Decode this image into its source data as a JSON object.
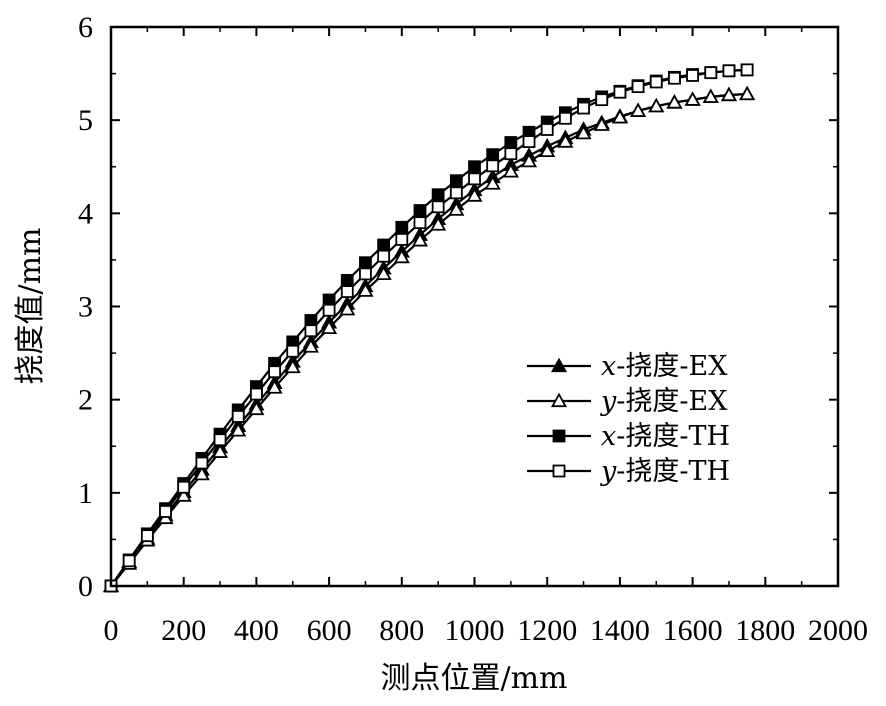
{
  "chart_data": {
    "type": "line",
    "xlabel": "测点位置/mm",
    "ylabel": "挠度值/mm",
    "xlim": [
      0,
      2000
    ],
    "ylim": [
      0,
      6
    ],
    "xticks": [
      "0",
      "200",
      "400",
      "600",
      "800",
      "1000",
      "1200",
      "1400",
      "1600",
      "1800",
      "2000"
    ],
    "yticks": [
      "0",
      "1",
      "2",
      "3",
      "4",
      "5",
      "6"
    ],
    "grid": false,
    "legend_position": "right-middle",
    "x": [
      0,
      50,
      100,
      150,
      200,
      250,
      300,
      350,
      400,
      450,
      500,
      550,
      600,
      650,
      700,
      750,
      800,
      850,
      900,
      950,
      1000,
      1050,
      1100,
      1150,
      1200,
      1250,
      1300,
      1350,
      1400,
      1450,
      1500,
      1550,
      1600,
      1650,
      1700,
      1750
    ],
    "series": [
      {
        "name": "x-挠度-EX",
        "var": "x",
        "suffix": "-挠度-EX",
        "marker": "triangle-filled",
        "values": [
          0,
          0.26,
          0.51,
          0.76,
          1.01,
          1.25,
          1.49,
          1.72,
          1.95,
          2.18,
          2.41,
          2.62,
          2.83,
          3.03,
          3.22,
          3.41,
          3.59,
          3.77,
          3.94,
          4.1,
          4.25,
          4.39,
          4.52,
          4.62,
          4.72,
          4.81,
          4.9,
          4.97,
          5.04,
          5.1,
          5.15,
          5.19,
          5.22,
          5.25,
          5.27,
          5.28
        ]
      },
      {
        "name": "y-挠度-EX",
        "var": "y",
        "suffix": "-挠度-EX",
        "marker": "triangle-open",
        "values": [
          0,
          0.24,
          0.49,
          0.73,
          0.97,
          1.2,
          1.44,
          1.67,
          1.9,
          2.13,
          2.35,
          2.57,
          2.77,
          2.97,
          3.17,
          3.35,
          3.53,
          3.71,
          3.88,
          4.04,
          4.19,
          4.32,
          4.45,
          4.56,
          4.67,
          4.77,
          4.86,
          4.95,
          5.03,
          5.1,
          5.15,
          5.19,
          5.22,
          5.25,
          5.27,
          5.28
        ]
      },
      {
        "name": "x-挠度-TH",
        "var": "x",
        "suffix": "-挠度-TH",
        "marker": "square-filled",
        "values": [
          0,
          0.28,
          0.56,
          0.83,
          1.1,
          1.37,
          1.63,
          1.89,
          2.14,
          2.39,
          2.62,
          2.85,
          3.07,
          3.28,
          3.47,
          3.66,
          3.85,
          4.03,
          4.2,
          4.35,
          4.5,
          4.63,
          4.76,
          4.87,
          4.98,
          5.08,
          5.17,
          5.25,
          5.31,
          5.37,
          5.42,
          5.46,
          5.49,
          5.51,
          5.53,
          5.54
        ]
      },
      {
        "name": "y-挠度-TH",
        "var": "y",
        "suffix": "-挠度-TH",
        "marker": "square-open",
        "values": [
          0,
          0.27,
          0.54,
          0.8,
          1.06,
          1.32,
          1.57,
          1.82,
          2.06,
          2.3,
          2.52,
          2.74,
          2.96,
          3.16,
          3.35,
          3.54,
          3.72,
          3.9,
          4.07,
          4.22,
          4.37,
          4.51,
          4.64,
          4.77,
          4.9,
          5.02,
          5.13,
          5.22,
          5.3,
          5.36,
          5.41,
          5.45,
          5.48,
          5.51,
          5.53,
          5.54
        ]
      }
    ]
  }
}
